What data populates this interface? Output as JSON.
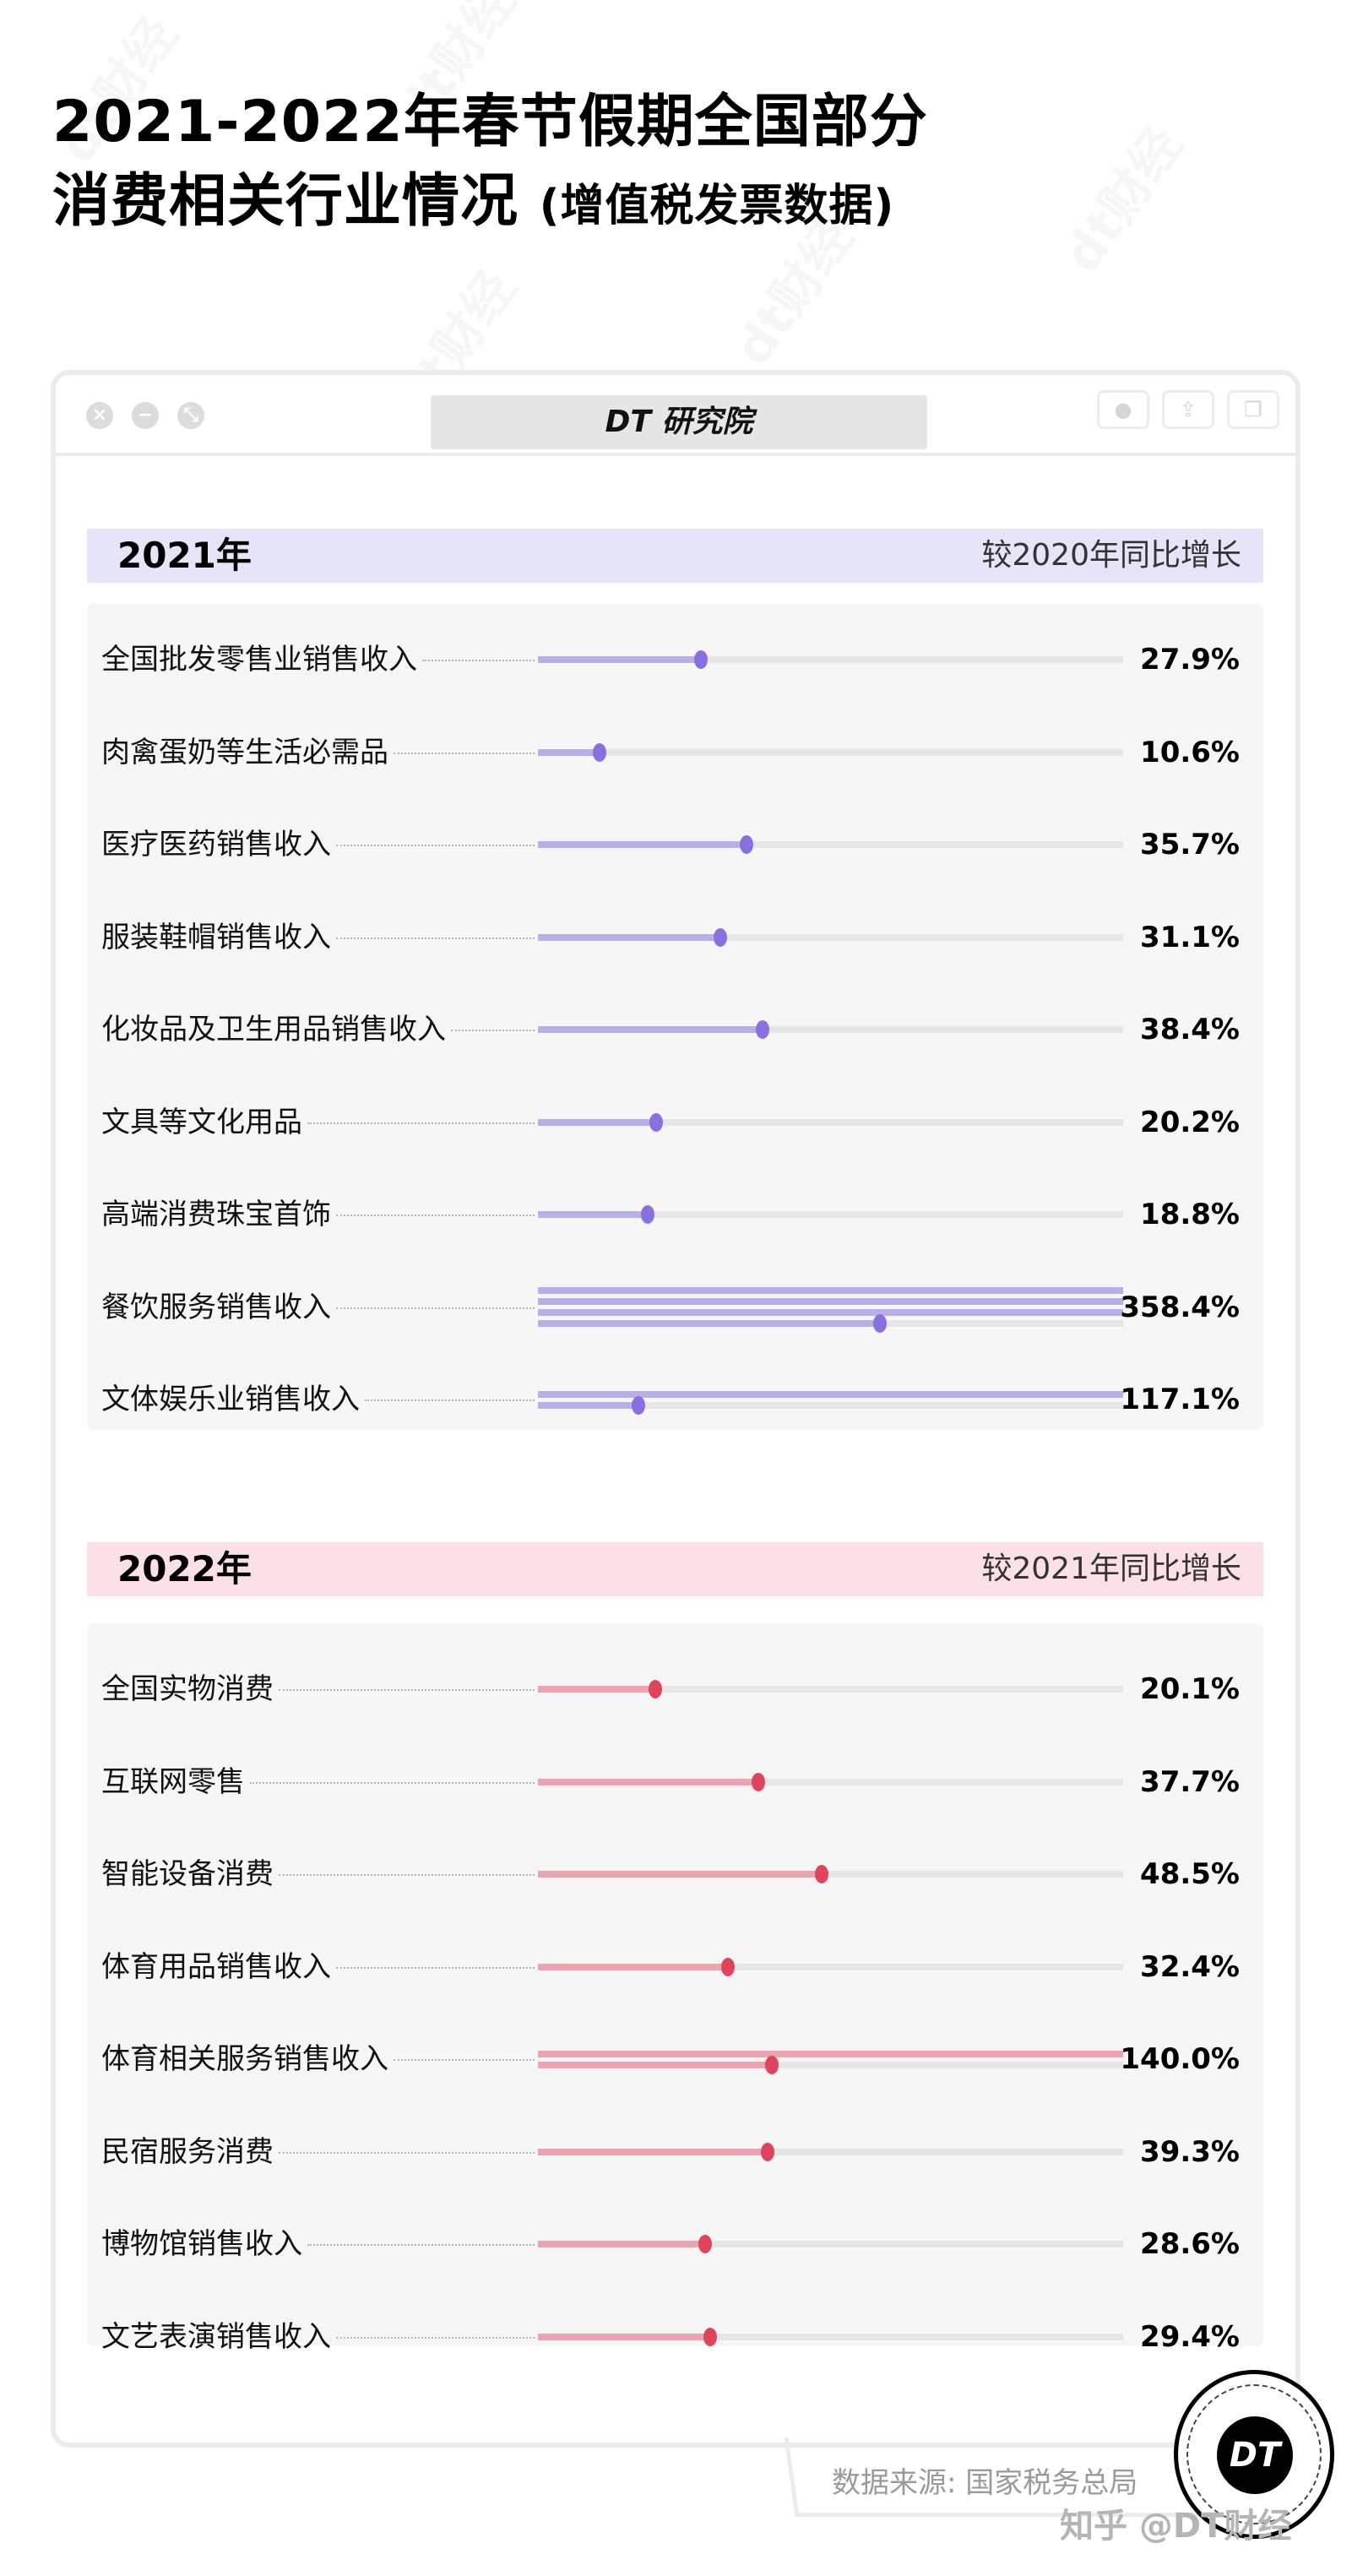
{
  "title": {
    "line1": "2021-2022年春节假期全国部分",
    "line2": "消费相关行业情况",
    "line2_sub": "(增值税发票数据)"
  },
  "window": {
    "brand": "DT 研究院",
    "controls": [
      "close-icon",
      "minimize-icon",
      "expand-icon"
    ],
    "tools": [
      "record-icon",
      "share-icon",
      "copy-windows-icon"
    ]
  },
  "colors": {
    "purple_fill": "#b8aee8",
    "purple_dot": "#8a6fe0",
    "red_fill": "#eea3ae",
    "red_dot": "#e0445a",
    "track": "#e6e6e6",
    "header_2021": "#e6e4f8",
    "header_2022": "#fbe0e6",
    "panel": "#f6f6f6"
  },
  "sections": [
    {
      "year": "2021年",
      "comparison": "较2020年同比增长",
      "rows": [
        {
          "label": "全国批发零售业销售收入",
          "value": "27.9%"
        },
        {
          "label": "肉禽蛋奶等生活必需品",
          "value": "10.6%"
        },
        {
          "label": "医疗医药销售收入",
          "value": "35.7%"
        },
        {
          "label": "服装鞋帽销售收入",
          "value": "31.1%"
        },
        {
          "label": "化妆品及卫生用品销售收入",
          "value": "38.4%"
        },
        {
          "label": "文具等文化用品",
          "value": "20.2%"
        },
        {
          "label": "高端消费珠宝首饰",
          "value": "18.8%"
        },
        {
          "label": "餐饮服务销售收入",
          "value": "358.4%"
        },
        {
          "label": "文体娱乐业销售收入",
          "value": "117.1%"
        }
      ]
    },
    {
      "year": "2022年",
      "comparison": "较2021年同比增长",
      "rows": [
        {
          "label": "全国实物消费",
          "value": "20.1%"
        },
        {
          "label": "互联网零售",
          "value": "37.7%"
        },
        {
          "label": "智能设备消费",
          "value": "48.5%"
        },
        {
          "label": "体育用品销售收入",
          "value": "32.4%"
        },
        {
          "label": "体育相关服务销售收入",
          "value": "140.0%"
        },
        {
          "label": "民宿服务消费",
          "value": "39.3%"
        },
        {
          "label": "博物馆销售收入",
          "value": "28.6%"
        },
        {
          "label": "文艺表演销售收入",
          "value": "29.4%"
        }
      ]
    }
  ],
  "footer": {
    "source": "数据来源: 国家税务总局",
    "watermark": "知乎 @DT财经",
    "logo": "DT"
  },
  "chart_data": [
    {
      "type": "bar",
      "title": "2021年 较2020年同比增长",
      "categories": [
        "全国批发零售业销售收入",
        "肉禽蛋奶等生活必需品",
        "医疗医药销售收入",
        "服装鞋帽销售收入",
        "化妆品及卫生用品销售收入",
        "文具等文化用品",
        "高端消费珠宝首饰",
        "餐饮服务销售收入",
        "文体娱乐业销售收入"
      ],
      "values": [
        27.9,
        10.6,
        35.7,
        31.1,
        38.4,
        20.2,
        18.8,
        358.4,
        117.1
      ],
      "unit": "%",
      "orientation": "horizontal",
      "note": "Each track = 100%; values >100% wrap onto stacked lines",
      "color": "#8a6fe0"
    },
    {
      "type": "bar",
      "title": "2022年 较2021年同比增长",
      "categories": [
        "全国实物消费",
        "互联网零售",
        "智能设备消费",
        "体育用品销售收入",
        "体育相关服务销售收入",
        "民宿服务消费",
        "博物馆销售收入",
        "文艺表演销售收入"
      ],
      "values": [
        20.1,
        37.7,
        48.5,
        32.4,
        140.0,
        39.3,
        28.6,
        29.4
      ],
      "unit": "%",
      "orientation": "horizontal",
      "note": "Each track = 100%; values >100% wrap onto stacked lines",
      "color": "#e0445a"
    }
  ]
}
